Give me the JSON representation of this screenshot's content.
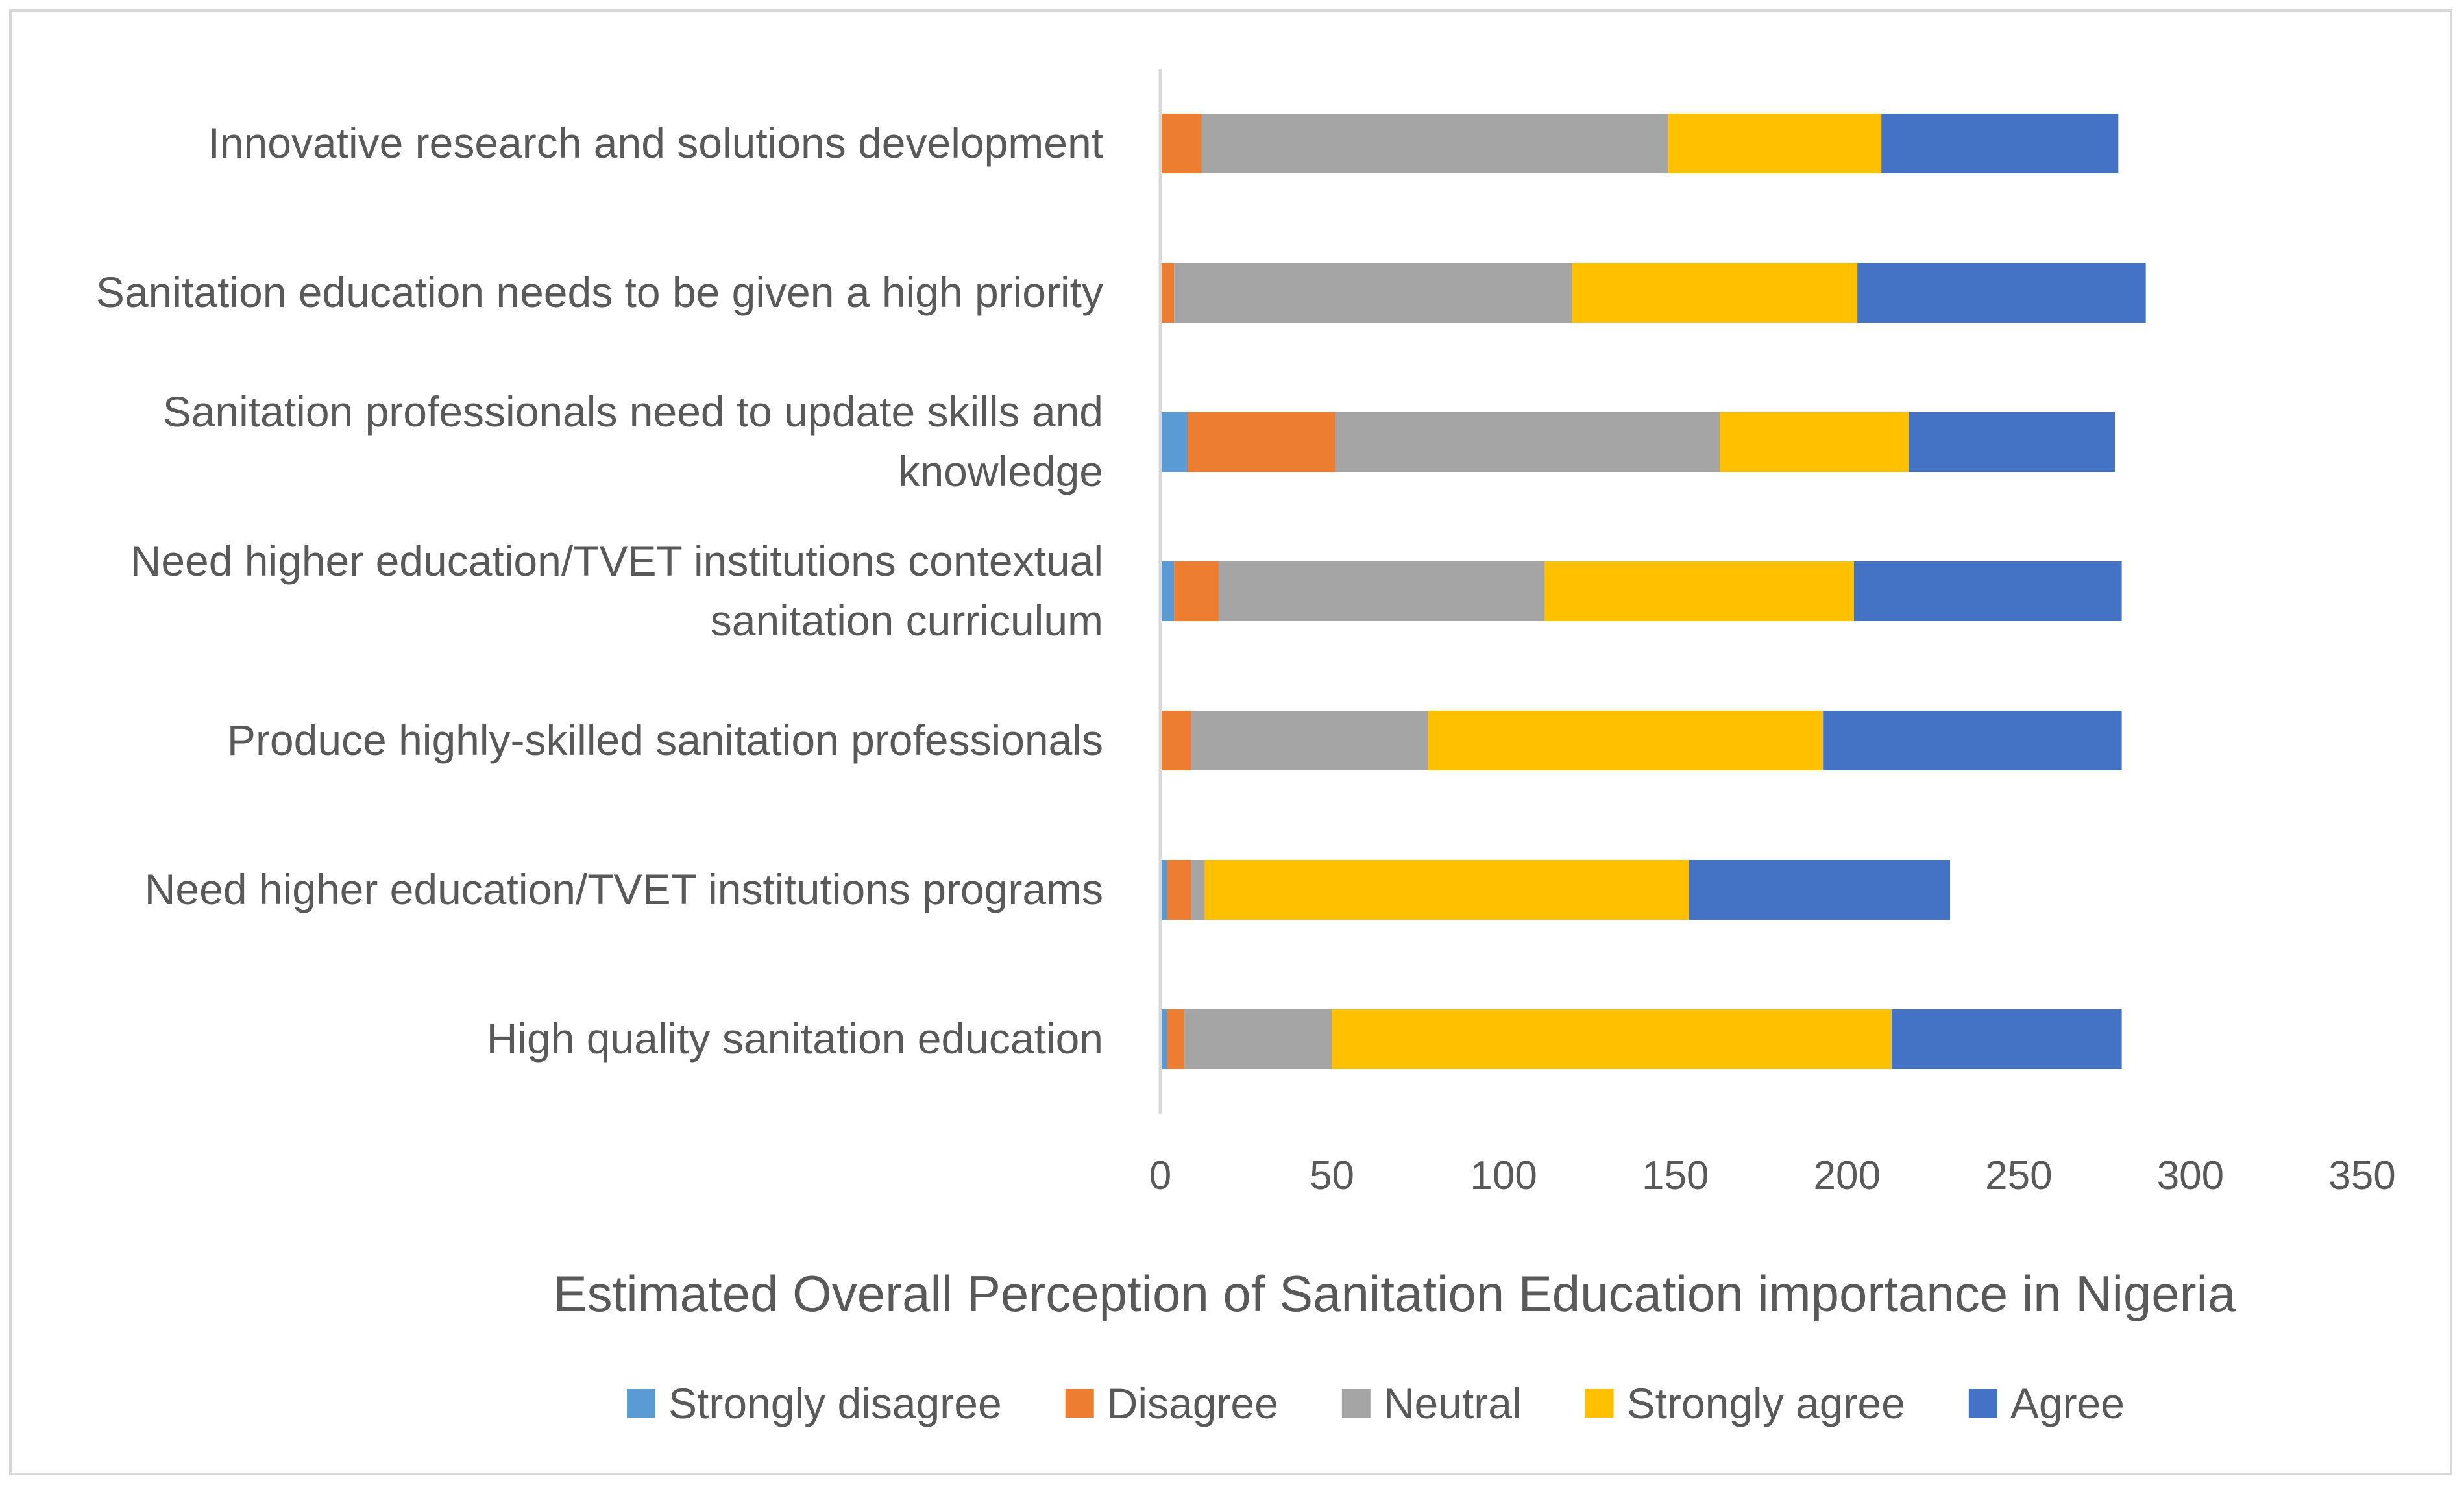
{
  "chart_data": {
    "type": "bar",
    "orientation": "horizontal",
    "stacked": true,
    "title": "",
    "xlabel": "Estimated Overall Perception of Sanitation Education importance in Nigeria",
    "ylabel": "",
    "xlim": [
      0,
      350
    ],
    "xticks": [
      "0",
      "50",
      "100",
      "150",
      "200",
      "250",
      "300",
      "350"
    ],
    "grid": false,
    "legend_position": "bottom",
    "categories": [
      [
        "Innovative research and solutions development"
      ],
      [
        "Sanitation education needs to be given a high priority"
      ],
      [
        "Sanitation professionals need to update skills and",
        "knowledge"
      ],
      [
        "Need higher education/TVET institutions contextual",
        "sanitation curriculum"
      ],
      [
        "Produce highly-skilled sanitation professionals"
      ],
      [
        "Need higher education/TVET institutions programs"
      ],
      [
        "High quality sanitation education"
      ]
    ],
    "series": [
      {
        "name": "Strongly disagree",
        "color": "#5b9bd5",
        "values": [
          0,
          0,
          8,
          4,
          0,
          2,
          2
        ]
      },
      {
        "name": "Disagree",
        "color": "#ed7d31",
        "values": [
          12,
          4,
          43,
          13,
          9,
          7,
          5
        ]
      },
      {
        "name": "Neutral",
        "color": "#a5a5a5",
        "values": [
          136,
          116,
          112,
          95,
          69,
          4,
          43
        ]
      },
      {
        "name": "Strongly agree",
        "color": "#ffc000",
        "values": [
          62,
          83,
          55,
          90,
          115,
          141,
          163
        ]
      },
      {
        "name": "Agree",
        "color": "#4472c4",
        "values": [
          69,
          84,
          60,
          78,
          87,
          76,
          67
        ]
      }
    ]
  }
}
